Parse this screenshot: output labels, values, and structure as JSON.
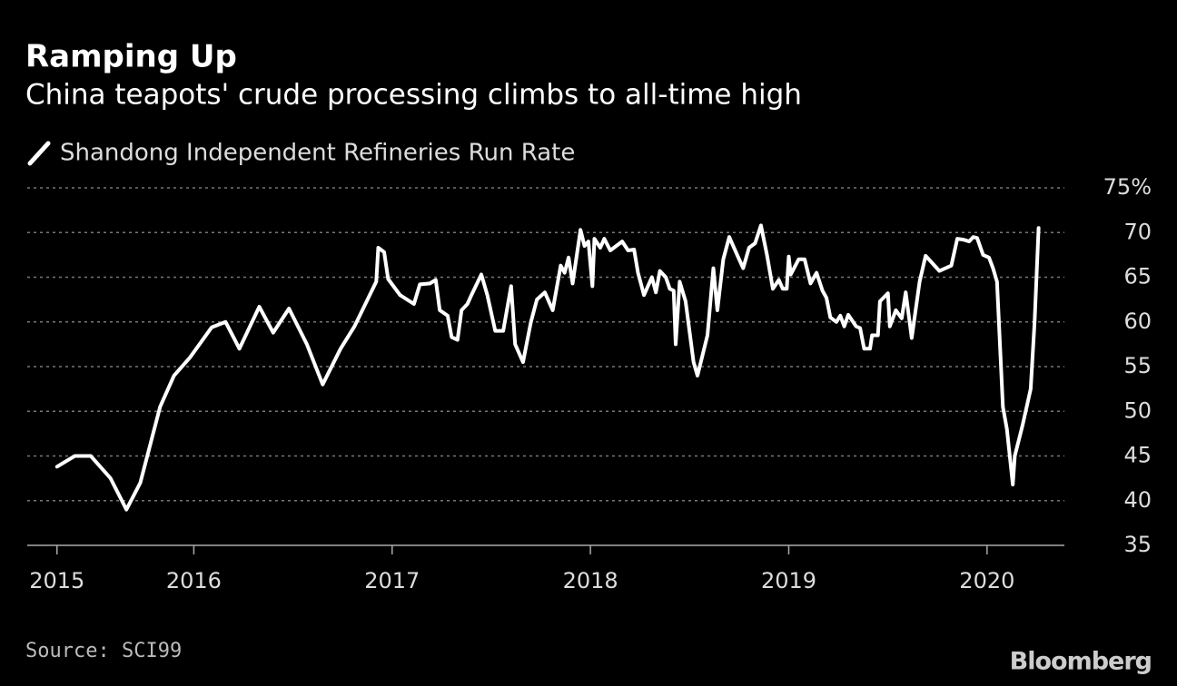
{
  "chart_data": {
    "type": "line",
    "title": "Ramping Up",
    "subtitle": "China teapots' crude processing climbs to all-time high",
    "source": "Source: SCI99",
    "brand": "Bloomberg",
    "x": [
      2015.31,
      2015.4,
      2015.48,
      2015.58,
      2015.66,
      2015.73,
      2015.83,
      2015.9,
      2015.98,
      2016.09,
      2016.16,
      2016.23,
      2016.33,
      2016.4,
      2016.48,
      2016.57,
      2016.65,
      2016.74,
      2016.81,
      2016.92,
      2016.93,
      2016.96,
      2016.98,
      2017.04,
      2017.11,
      2017.14,
      2017.19,
      2017.22,
      2017.24,
      2017.28,
      2017.3,
      2017.33,
      2017.35,
      2017.38,
      2017.4,
      2017.45,
      2017.48,
      2017.52,
      2017.56,
      2017.6,
      2017.62,
      2017.66,
      2017.7,
      2017.73,
      2017.77,
      2017.81,
      2017.85,
      2017.87,
      2017.89,
      2017.91,
      2017.95,
      2017.97,
      2017.99,
      2018.01,
      2018.02,
      2018.05,
      2018.07,
      2018.1,
      2018.16,
      2018.19,
      2018.22,
      2018.24,
      2018.27,
      2018.31,
      2018.33,
      2018.35,
      2018.38,
      2018.4,
      2018.42,
      2018.43,
      2018.45,
      2018.48,
      2018.52,
      2018.54,
      2018.59,
      2018.62,
      2018.64,
      2018.67,
      2018.7,
      2018.74,
      2018.77,
      2018.8,
      2018.83,
      2018.86,
      2018.89,
      2018.92,
      2018.95,
      2018.97,
      2018.99,
      2019.0,
      2019.01,
      2019.05,
      2019.08,
      2019.11,
      2019.14,
      2019.17,
      2019.19,
      2019.21,
      2019.24,
      2019.26,
      2019.28,
      2019.3,
      2019.34,
      2019.36,
      2019.38,
      2019.41,
      2019.42,
      2019.45,
      2019.46,
      2019.5,
      2019.51,
      2019.54,
      2019.57,
      2019.59,
      2019.62,
      2019.66,
      2019.69,
      2019.76,
      2019.82,
      2019.85,
      2019.88,
      2019.91,
      2019.93,
      2019.95,
      2019.98,
      2020.01,
      2020.03,
      2020.05,
      2020.08,
      2020.1,
      2020.13,
      2020.14,
      2020.18,
      2020.22,
      2020.24,
      2020.26
    ],
    "series": [
      {
        "name": "Shandong Independent Refineries Run Rate",
        "color": "#ffffff",
        "values": [
          43.8,
          45,
          45,
          42.5,
          39,
          42,
          50.5,
          54,
          56,
          59.4,
          60,
          57,
          61.7,
          58.8,
          61.5,
          57.5,
          53,
          57,
          59.5,
          64.5,
          68.3,
          67.8,
          64.8,
          63,
          62,
          64.2,
          64.3,
          64.7,
          61.3,
          60.7,
          58.3,
          58,
          61.3,
          62,
          63,
          65.3,
          63,
          59,
          59,
          64,
          57.5,
          55.5,
          60,
          62.5,
          63.3,
          61.3,
          66.3,
          65.5,
          67.2,
          64.3,
          70.3,
          68.5,
          69,
          64,
          69.3,
          68.3,
          69.3,
          68,
          69,
          68,
          68.1,
          65.5,
          63,
          65,
          63.3,
          65.7,
          65,
          63.7,
          63.5,
          57.5,
          64.5,
          62.3,
          55.5,
          54,
          58.5,
          66,
          61.3,
          67,
          69.5,
          67.5,
          66,
          68.3,
          68.8,
          70.8,
          67.5,
          63.7,
          64.7,
          63.7,
          63.7,
          67.3,
          65.3,
          67,
          67,
          64.3,
          65.5,
          63.5,
          62.7,
          60.5,
          60,
          60.7,
          59.5,
          60.8,
          59.5,
          59.3,
          57,
          57,
          58.5,
          58.5,
          62.3,
          63.2,
          59.5,
          61.3,
          60.4,
          63.3,
          58.2,
          64.5,
          67.4,
          65.7,
          66.3,
          69.3,
          69.2,
          69,
          69.5,
          69.4,
          67.5,
          67.2,
          66,
          64.5,
          50.5,
          48,
          41.8,
          45,
          48.5,
          52.5,
          60,
          70.5
        ]
      }
    ],
    "xlim": [
      2015.16,
      2020.39
    ],
    "xticks": [
      {
        "value": 2015.31,
        "label": "2015"
      },
      2016,
      2017,
      2018,
      2019,
      2020
    ],
    "ylim": [
      35,
      75
    ],
    "yticks": [
      35,
      40,
      45,
      50,
      55,
      60,
      65,
      70,
      {
        "value": 75,
        "label": "75%"
      }
    ],
    "grid": true
  }
}
